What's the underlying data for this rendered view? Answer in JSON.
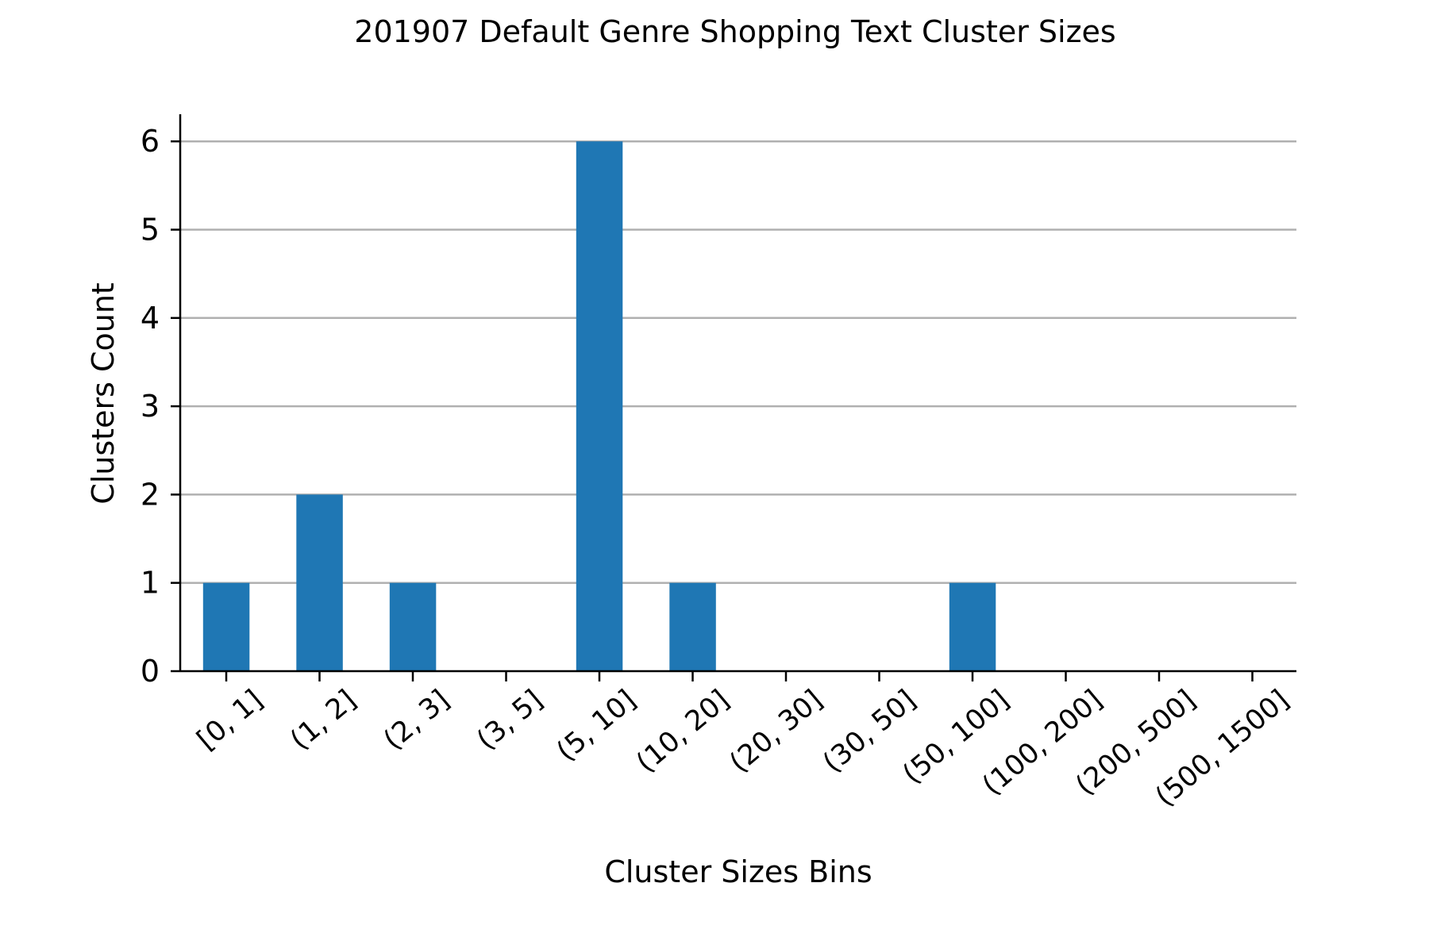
{
  "chart_data": {
    "type": "bar",
    "title": "201907 Default Genre Shopping Text Cluster Sizes",
    "xlabel": "Cluster Sizes Bins",
    "ylabel": "Clusters Count",
    "categories": [
      "[0, 1]",
      "(1, 2]",
      "(2, 3]",
      "(3, 5]",
      "(5, 10]",
      "(10, 20]",
      "(20, 30]",
      "(30, 50]",
      "(50, 100]",
      "(100, 200]",
      "(200, 500]",
      "(500, 1500]"
    ],
    "values": [
      1,
      2,
      1,
      0,
      6,
      1,
      0,
      0,
      1,
      0,
      0,
      0
    ],
    "yticks": [
      0,
      1,
      2,
      3,
      4,
      5,
      6
    ],
    "ylim": [
      0,
      6.3
    ],
    "grid": "horizontal",
    "bar_color": "#1f77b4"
  }
}
